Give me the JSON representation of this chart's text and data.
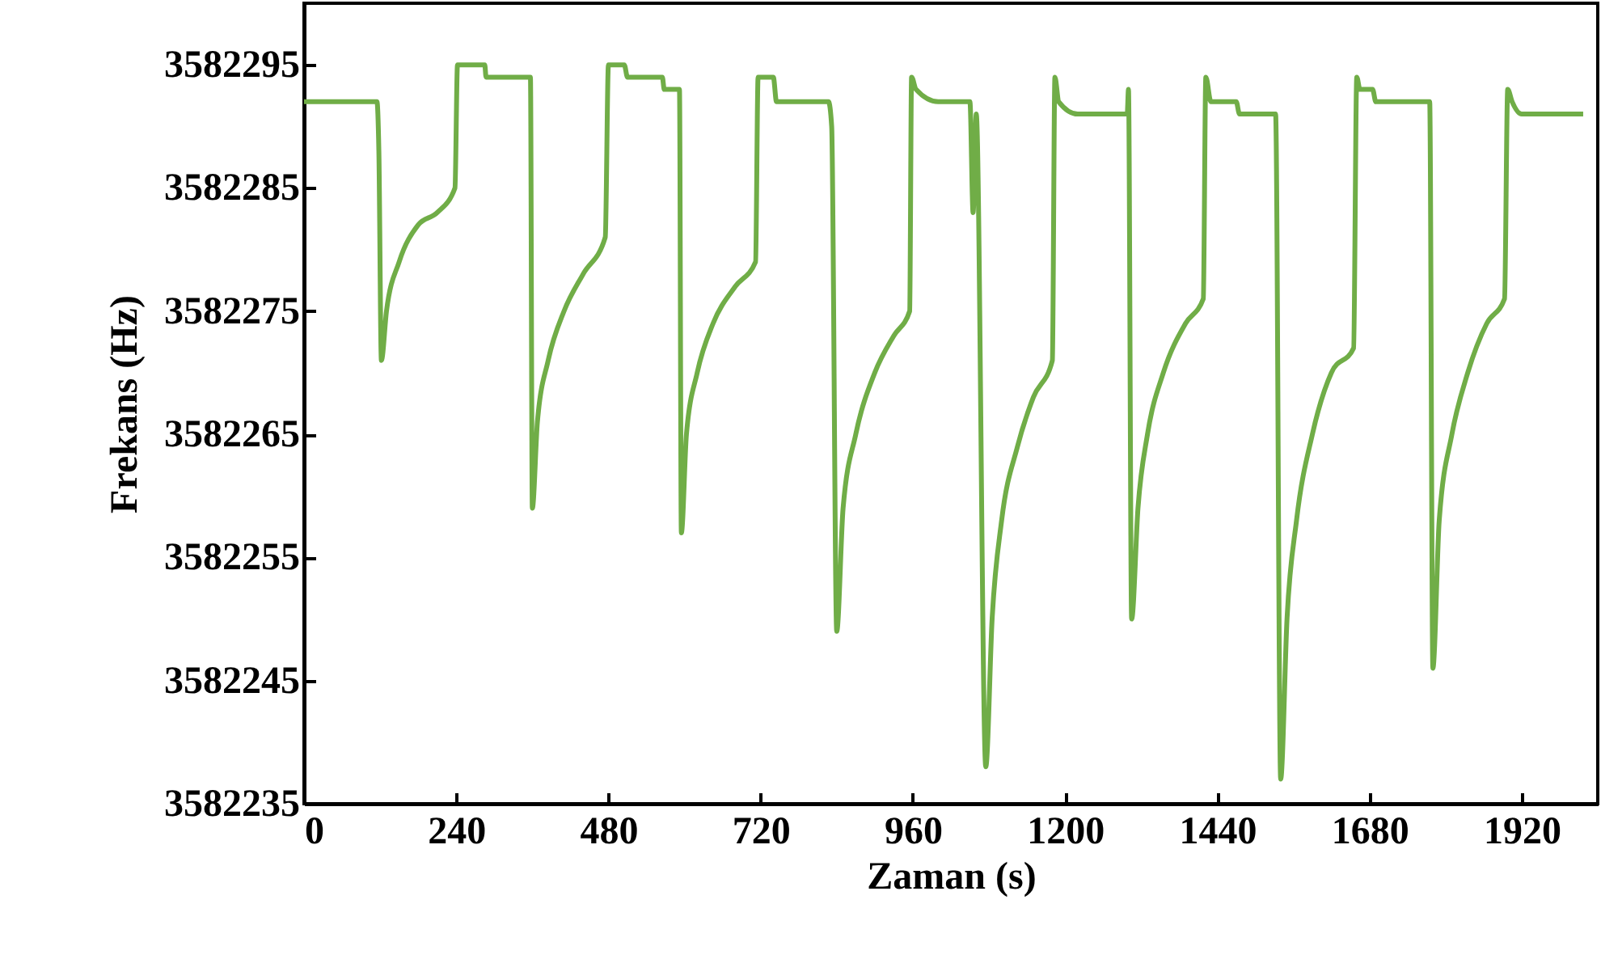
{
  "chart_data": {
    "type": "line",
    "xlabel": "Zaman (s)",
    "ylabel": "Frekans (Hz)",
    "xlim": [
      0,
      2040
    ],
    "xticks": [
      0,
      240,
      480,
      720,
      960,
      1200,
      1440,
      1680,
      1920
    ],
    "ylim": [
      3582235,
      3582300
    ],
    "yticks": [
      3582235,
      3582245,
      3582255,
      3582265,
      3582275,
      3582285,
      3582295
    ],
    "grid": false,
    "marker": "none",
    "line_style": "solid",
    "x": [
      0,
      115,
      118,
      122,
      130,
      150,
      180,
      210,
      238,
      242,
      285,
      287,
      357,
      360,
      368,
      385,
      410,
      440,
      475,
      480,
      505,
      510,
      565,
      568,
      592,
      595,
      603,
      620,
      645,
      680,
      712,
      716,
      740,
      745,
      827,
      832,
      840,
      850,
      870,
      900,
      930,
      955,
      958,
      965,
      1000,
      1050,
      1055,
      1060,
      1075,
      1085,
      1100,
      1125,
      1150,
      1180,
      1184,
      1190,
      1220,
      1298,
      1300,
      1305,
      1315,
      1330,
      1355,
      1390,
      1418,
      1422,
      1430,
      1470,
      1475,
      1532,
      1540,
      1550,
      1565,
      1590,
      1620,
      1655,
      1660,
      1665,
      1685,
      1690,
      1775,
      1780,
      1790,
      1810,
      1835,
      1865,
      1893,
      1898,
      1905,
      1920,
      2017
    ],
    "series": [
      {
        "color": "#70ad47",
        "values": [
          3582292,
          3582292,
          3582288,
          3582271,
          3582275,
          3582279,
          3582282,
          3582283,
          3582285,
          3582295,
          3582295,
          3582294,
          3582294,
          3582259,
          3582266,
          3582271,
          3582275,
          3582278,
          3582281,
          3582295,
          3582295,
          3582294,
          3582294,
          3582293,
          3582293,
          3582257,
          3582265,
          3582270,
          3582274,
          3582277,
          3582279,
          3582294,
          3582294,
          3582292,
          3582292,
          3582290,
          3582249,
          3582259,
          3582265,
          3582270,
          3582273,
          3582275,
          3582294,
          3582293,
          3582292,
          3582292,
          3582283,
          3582291,
          3582238,
          3582250,
          3582258,
          3582264,
          3582268,
          3582271,
          3582294,
          3582292,
          3582291,
          3582291,
          3582293,
          3582250,
          3582259,
          3582265,
          3582270,
          3582274,
          3582276,
          3582294,
          3582292,
          3582292,
          3582291,
          3582291,
          3582237,
          3582250,
          3582258,
          3582265,
          3582270,
          3582272,
          3582294,
          3582293,
          3582293,
          3582292,
          3582292,
          3582246,
          3582258,
          3582265,
          3582270,
          3582274,
          3582276,
          3582293,
          3582292,
          3582291,
          3582291
        ]
      }
    ]
  }
}
